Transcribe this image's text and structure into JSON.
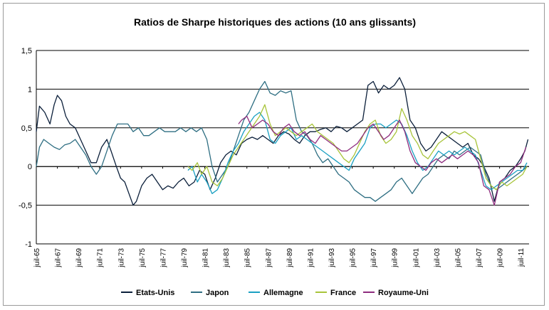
{
  "chart_data": {
    "type": "line",
    "title": "Ratios de Sharpe historiques des actions (10 ans glissants)",
    "xlabel": "",
    "ylabel": "",
    "ylim": [
      -1,
      1.5
    ],
    "xlim": [
      1965.5,
      2012.3
    ],
    "y_ticks": [
      "1,5",
      "1",
      "0,5",
      "0",
      "-0,5",
      "-1"
    ],
    "y_tick_values": [
      1.5,
      1,
      0.5,
      0,
      -0.5,
      -1
    ],
    "x_ticks": [
      "juil-65",
      "juil-67",
      "juil-69",
      "juil-71",
      "juil-73",
      "juil-75",
      "juil-77",
      "juil-79",
      "juil-81",
      "juil-83",
      "juil-85",
      "juil-87",
      "juil-89",
      "juil-91",
      "juil-93",
      "juil-95",
      "juil-97",
      "juil-99",
      "juil-01",
      "juil-03",
      "juil-05",
      "juil-07",
      "juil-09",
      "juil-11"
    ],
    "x_tick_values": [
      1965.5,
      1967.5,
      1969.5,
      1971.5,
      1973.5,
      1975.5,
      1977.5,
      1979.5,
      1981.5,
      1983.5,
      1985.5,
      1987.5,
      1989.5,
      1991.5,
      1993.5,
      1995.5,
      1997.5,
      1999.5,
      2001.5,
      2003.5,
      2005.5,
      2007.5,
      2009.5,
      2011.5
    ],
    "grid": true,
    "legend_position": "bottom",
    "series": [
      {
        "name": "Etats-Unis",
        "color": "#0b1f3a",
        "x": [
          1965.5,
          1965.8,
          1966.3,
          1966.8,
          1967.2,
          1967.5,
          1967.9,
          1968.3,
          1968.7,
          1969.2,
          1969.7,
          1970.2,
          1970.7,
          1971.2,
          1971.7,
          1972.2,
          1972.6,
          1973.1,
          1973.5,
          1973.9,
          1974.3,
          1974.7,
          1975.0,
          1975.5,
          1976.0,
          1976.5,
          1977.0,
          1977.5,
          1978.0,
          1978.5,
          1979.0,
          1979.5,
          1980.0,
          1980.5,
          1981.0,
          1981.5,
          1982.0,
          1982.5,
          1983.0,
          1983.5,
          1984.0,
          1984.5,
          1985.0,
          1985.5,
          1986.0,
          1986.5,
          1987.0,
          1987.5,
          1988.0,
          1988.5,
          1989.0,
          1989.5,
          1990.0,
          1990.5,
          1991.0,
          1991.5,
          1992.0,
          1992.5,
          1993.0,
          1993.5,
          1994.0,
          1994.5,
          1995.0,
          1995.5,
          1996.0,
          1996.5,
          1997.0,
          1997.5,
          1998.0,
          1998.5,
          1999.0,
          1999.5,
          2000.0,
          2000.5,
          2001.0,
          2001.5,
          2002.0,
          2002.5,
          2003.0,
          2003.5,
          2004.0,
          2004.5,
          2005.0,
          2005.5,
          2006.0,
          2006.5,
          2007.0,
          2007.5,
          2008.0,
          2008.5,
          2009.0,
          2009.5,
          2010.0,
          2010.5,
          2011.0,
          2011.5,
          2011.9,
          2012.2
        ],
        "values": [
          0.45,
          0.78,
          0.7,
          0.55,
          0.8,
          0.92,
          0.85,
          0.65,
          0.55,
          0.5,
          0.35,
          0.2,
          0.05,
          0.05,
          0.25,
          0.35,
          0.2,
          0.0,
          -0.15,
          -0.2,
          -0.35,
          -0.5,
          -0.45,
          -0.25,
          -0.15,
          -0.1,
          -0.2,
          -0.3,
          -0.25,
          -0.28,
          -0.2,
          -0.15,
          -0.25,
          -0.2,
          -0.05,
          -0.1,
          -0.3,
          -0.15,
          0.05,
          0.15,
          0.2,
          0.15,
          0.3,
          0.35,
          0.38,
          0.35,
          0.4,
          0.35,
          0.3,
          0.4,
          0.45,
          0.42,
          0.35,
          0.3,
          0.4,
          0.45,
          0.45,
          0.48,
          0.5,
          0.45,
          0.52,
          0.5,
          0.45,
          0.5,
          0.55,
          0.6,
          1.05,
          1.1,
          0.95,
          1.05,
          1.0,
          1.05,
          1.15,
          1.0,
          0.6,
          0.5,
          0.3,
          0.2,
          0.25,
          0.35,
          0.45,
          0.4,
          0.35,
          0.3,
          0.25,
          0.3,
          0.15,
          0.1,
          0.0,
          -0.15,
          -0.45,
          -0.2,
          -0.15,
          -0.05,
          0.0,
          0.1,
          0.2,
          0.35
        ]
      },
      {
        "name": "Japon",
        "color": "#2e6e82",
        "x": [
          1965.5,
          1965.8,
          1966.2,
          1966.7,
          1967.2,
          1967.7,
          1968.2,
          1968.7,
          1969.2,
          1969.7,
          1970.2,
          1970.7,
          1971.2,
          1971.7,
          1972.2,
          1972.7,
          1973.2,
          1973.7,
          1974.2,
          1974.7,
          1975.2,
          1975.7,
          1976.2,
          1976.7,
          1977.2,
          1977.7,
          1978.2,
          1978.7,
          1979.2,
          1979.7,
          1980.2,
          1980.7,
          1981.2,
          1981.7,
          1982.2,
          1982.7,
          1983.2,
          1983.7,
          1984.2,
          1984.7,
          1985.2,
          1985.7,
          1986.2,
          1986.7,
          1987.2,
          1987.7,
          1988.2,
          1988.7,
          1989.2,
          1989.7,
          1990.2,
          1990.7,
          1991.2,
          1991.7,
          1992.2,
          1992.7,
          1993.2,
          1993.7,
          1994.2,
          1994.7,
          1995.2,
          1995.7,
          1996.2,
          1996.7,
          1997.2,
          1997.7,
          1998.2,
          1998.7,
          1999.2,
          1999.7,
          2000.2,
          2000.7,
          2001.2,
          2001.7,
          2002.2,
          2002.7,
          2003.2,
          2003.7,
          2004.2,
          2004.7,
          2005.2,
          2005.7,
          2006.2,
          2006.7,
          2007.2,
          2007.7,
          2008.2,
          2008.7,
          2009.2,
          2009.7,
          2010.2,
          2010.7,
          2011.2,
          2011.7,
          2012.1
        ],
        "values": [
          0.0,
          0.25,
          0.35,
          0.3,
          0.25,
          0.22,
          0.28,
          0.3,
          0.35,
          0.25,
          0.15,
          0.0,
          -0.1,
          0.0,
          0.2,
          0.4,
          0.55,
          0.55,
          0.55,
          0.45,
          0.5,
          0.4,
          0.4,
          0.45,
          0.5,
          0.45,
          0.45,
          0.45,
          0.5,
          0.45,
          0.5,
          0.45,
          0.5,
          0.35,
          0.0,
          -0.2,
          -0.1,
          0.0,
          0.2,
          0.4,
          0.6,
          0.7,
          0.85,
          1.0,
          1.1,
          0.95,
          0.92,
          0.98,
          0.95,
          0.98,
          0.6,
          0.45,
          0.4,
          0.3,
          0.15,
          0.05,
          0.1,
          0.0,
          -0.1,
          -0.15,
          -0.2,
          -0.3,
          -0.35,
          -0.4,
          -0.4,
          -0.45,
          -0.4,
          -0.35,
          -0.3,
          -0.2,
          -0.15,
          -0.25,
          -0.35,
          -0.25,
          -0.15,
          -0.1,
          0.0,
          0.1,
          0.15,
          0.1,
          0.2,
          0.15,
          0.2,
          0.25,
          0.2,
          0.15,
          -0.1,
          -0.25,
          -0.3,
          -0.25,
          -0.2,
          -0.15,
          -0.1,
          -0.05,
          0.0
        ]
      },
      {
        "name": "Allemagne",
        "color": "#1aa0c2",
        "x": [
          1979.9,
          1980.3,
          1980.8,
          1981.2,
          1981.7,
          1982.2,
          1982.7,
          1983.2,
          1983.7,
          1984.2,
          1984.7,
          1985.2,
          1985.7,
          1986.2,
          1986.7,
          1987.2,
          1987.7,
          1988.2,
          1988.7,
          1989.2,
          1989.7,
          1990.2,
          1990.7,
          1991.2,
          1991.7,
          1992.2,
          1992.7,
          1993.2,
          1993.7,
          1994.2,
          1994.7,
          1995.2,
          1995.7,
          1996.2,
          1996.7,
          1997.2,
          1997.7,
          1998.2,
          1998.7,
          1999.2,
          1999.7,
          2000.2,
          2000.7,
          2001.2,
          2001.7,
          2002.2,
          2002.7,
          2003.2,
          2003.7,
          2004.2,
          2004.7,
          2005.2,
          2005.7,
          2006.2,
          2006.7,
          2007.2,
          2007.7,
          2008.2,
          2008.7,
          2009.2,
          2009.7,
          2010.2,
          2010.7,
          2011.2,
          2011.7,
          2012.1
        ],
        "values": [
          -0.05,
          0.0,
          -0.2,
          -0.1,
          -0.2,
          -0.35,
          -0.3,
          -0.15,
          0.05,
          0.2,
          0.3,
          0.45,
          0.55,
          0.65,
          0.7,
          0.6,
          0.35,
          0.3,
          0.4,
          0.45,
          0.5,
          0.35,
          0.4,
          0.35,
          0.3,
          0.25,
          0.2,
          0.15,
          0.1,
          0.05,
          0.0,
          -0.05,
          0.1,
          0.2,
          0.3,
          0.5,
          0.55,
          0.55,
          0.5,
          0.55,
          0.6,
          0.55,
          0.4,
          0.2,
          0.05,
          -0.05,
          0.0,
          0.1,
          0.2,
          0.15,
          0.2,
          0.15,
          0.2,
          0.25,
          0.2,
          0.15,
          -0.05,
          -0.25,
          -0.3,
          -0.25,
          -0.2,
          -0.15,
          -0.1,
          -0.05,
          -0.05,
          0.05
        ]
      },
      {
        "name": "France",
        "color": "#a8c43a",
        "x": [
          1979.9,
          1980.3,
          1980.8,
          1981.2,
          1981.7,
          1982.2,
          1982.7,
          1983.2,
          1983.7,
          1984.2,
          1984.7,
          1985.2,
          1985.7,
          1986.2,
          1986.7,
          1987.2,
          1987.7,
          1988.2,
          1988.7,
          1989.2,
          1989.7,
          1990.2,
          1990.7,
          1991.2,
          1991.7,
          1992.2,
          1992.7,
          1993.2,
          1993.7,
          1994.2,
          1994.7,
          1995.2,
          1995.7,
          1996.2,
          1996.7,
          1997.2,
          1997.7,
          1998.2,
          1998.7,
          1999.2,
          1999.7,
          2000.2,
          2000.7,
          2001.2,
          2001.7,
          2002.2,
          2002.7,
          2003.2,
          2003.7,
          2004.2,
          2004.7,
          2005.2,
          2005.7,
          2006.2,
          2006.7,
          2007.2,
          2007.7,
          2008.2,
          2008.7,
          2009.2,
          2009.7,
          2010.2,
          2010.7,
          2011.2,
          2011.7,
          2012.1
        ],
        "values": [
          0.0,
          -0.05,
          0.05,
          -0.1,
          0.0,
          -0.2,
          -0.25,
          -0.15,
          0.0,
          0.15,
          0.25,
          0.35,
          0.45,
          0.55,
          0.65,
          0.8,
          0.55,
          0.4,
          0.45,
          0.5,
          0.45,
          0.4,
          0.45,
          0.5,
          0.55,
          0.45,
          0.4,
          0.35,
          0.3,
          0.2,
          0.1,
          0.05,
          0.15,
          0.3,
          0.45,
          0.55,
          0.6,
          0.4,
          0.3,
          0.35,
          0.45,
          0.75,
          0.6,
          0.4,
          0.3,
          0.15,
          0.1,
          0.2,
          0.3,
          0.35,
          0.4,
          0.45,
          0.42,
          0.45,
          0.4,
          0.35,
          0.1,
          -0.15,
          -0.25,
          -0.3,
          -0.2,
          -0.25,
          -0.2,
          -0.15,
          -0.1,
          0.0
        ]
      },
      {
        "name": "Royaume-Uni",
        "color": "#8e2c7e",
        "x": [
          1984.7,
          1985.0,
          1985.5,
          1986.0,
          1986.5,
          1987.0,
          1987.5,
          1988.0,
          1988.5,
          1989.0,
          1989.5,
          1990.0,
          1990.5,
          1991.0,
          1991.5,
          1992.0,
          1992.5,
          1993.0,
          1993.5,
          1994.0,
          1994.5,
          1995.0,
          1995.5,
          1996.0,
          1996.5,
          1997.0,
          1997.5,
          1998.0,
          1998.5,
          1999.0,
          1999.5,
          2000.0,
          2000.5,
          2001.0,
          2001.5,
          2002.0,
          2002.5,
          2003.0,
          2003.5,
          2004.0,
          2004.5,
          2005.0,
          2005.5,
          2006.0,
          2006.5,
          2007.0,
          2007.5,
          2008.0,
          2008.5,
          2009.0,
          2009.5,
          2010.0,
          2010.5,
          2011.0,
          2011.5,
          2012.0
        ],
        "values": [
          0.55,
          0.6,
          0.65,
          0.5,
          0.55,
          0.6,
          0.55,
          0.45,
          0.4,
          0.5,
          0.55,
          0.45,
          0.4,
          0.45,
          0.35,
          0.3,
          0.4,
          0.35,
          0.3,
          0.25,
          0.2,
          0.2,
          0.25,
          0.3,
          0.4,
          0.5,
          0.55,
          0.45,
          0.35,
          0.4,
          0.5,
          0.6,
          0.45,
          0.2,
          0.05,
          0.0,
          -0.05,
          0.05,
          0.1,
          0.05,
          0.1,
          0.15,
          0.1,
          0.15,
          0.2,
          0.15,
          0.05,
          -0.25,
          -0.3,
          -0.5,
          -0.2,
          -0.15,
          -0.1,
          0.0,
          0.05,
          0.25
        ]
      }
    ]
  }
}
